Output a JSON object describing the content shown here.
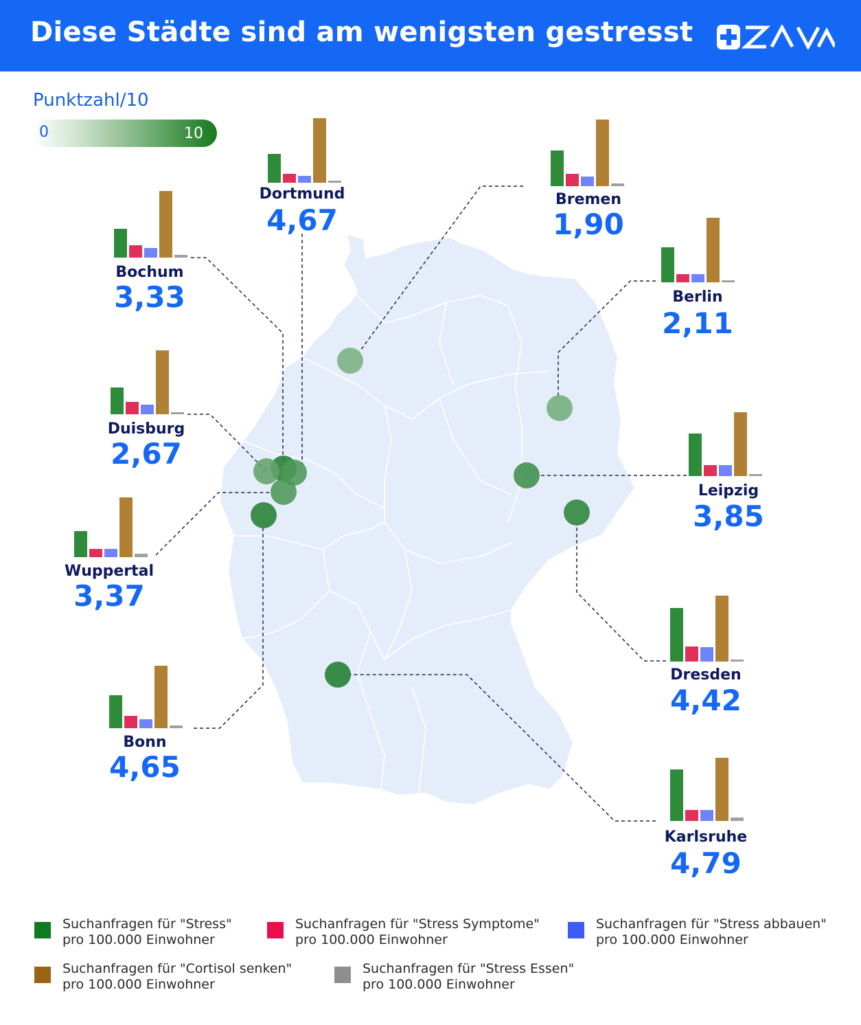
{
  "header": {
    "title": "Diese Städte sind am wenigsten gestresst",
    "brand": "ZAVA",
    "background_color": "#1468f5"
  },
  "scale": {
    "title": "Punktzahl/10",
    "min_label": "0",
    "max_label": "10",
    "min": 0,
    "max": 10
  },
  "series_colors": {
    "stress": "#2e8b3a",
    "symptome": "#e0305a",
    "abbauen": "#6e84f8",
    "cortisol": "#b08034",
    "essen": "#a0a0a0"
  },
  "legend": [
    {
      "key": "stress",
      "line1": "Suchanfragen für \"Stress\"",
      "line2": "pro 100.000 Einwohner",
      "color": "#0f7a1e"
    },
    {
      "key": "symptome",
      "line1": "Suchanfragen für \"Stress Symptome\"",
      "line2": "pro 100.000 Einwohner",
      "color": "#e8104a"
    },
    {
      "key": "abbauen",
      "line1": "Suchanfragen für \"Stress abbauen\"",
      "line2": "pro 100.000 Einwohner",
      "color": "#3d5cf5"
    },
    {
      "key": "cortisol",
      "line1": "Suchanfragen für \"Cortisol senken\"",
      "line2": "pro 100.000 Einwohner",
      "color": "#9c6412"
    },
    {
      "key": "essen",
      "line1": "Suchanfragen für \"Stress Essen\"",
      "line2": "pro 100.000 Einwohner",
      "color": "#8e8e8e"
    }
  ],
  "cities": [
    {
      "name": "Dortmund",
      "score": "4,67",
      "score_value": 4.67,
      "bars": [
        42,
        13,
        10,
        94,
        1
      ]
    },
    {
      "name": "Bremen",
      "score": "1,90",
      "score_value": 1.9,
      "bars": [
        52,
        18,
        14,
        97,
        4
      ]
    },
    {
      "name": "Bochum",
      "score": "3,33",
      "score_value": 3.33,
      "bars": [
        42,
        18,
        14,
        97,
        4
      ]
    },
    {
      "name": "Berlin",
      "score": "2,11",
      "score_value": 2.11,
      "bars": [
        51,
        12,
        12,
        94,
        1
      ]
    },
    {
      "name": "Duisburg",
      "score": "2,67",
      "score_value": 2.67,
      "bars": [
        39,
        18,
        14,
        93,
        3
      ]
    },
    {
      "name": "Leipzig",
      "score": "3,85",
      "score_value": 3.85,
      "bars": [
        62,
        16,
        16,
        93,
        2
      ]
    },
    {
      "name": "Wuppertal",
      "score": "3,37",
      "score_value": 3.37,
      "bars": [
        38,
        12,
        12,
        87,
        5
      ]
    },
    {
      "name": "Dresden",
      "score": "4,42",
      "score_value": 4.42,
      "bars": [
        78,
        22,
        21,
        96,
        3
      ]
    },
    {
      "name": "Bonn",
      "score": "4,65",
      "score_value": 4.65,
      "bars": [
        48,
        18,
        13,
        91,
        4
      ]
    },
    {
      "name": "Karlsruhe",
      "score": "4,79",
      "score_value": 4.79,
      "bars": [
        75,
        16,
        16,
        92,
        5
      ]
    }
  ]
}
